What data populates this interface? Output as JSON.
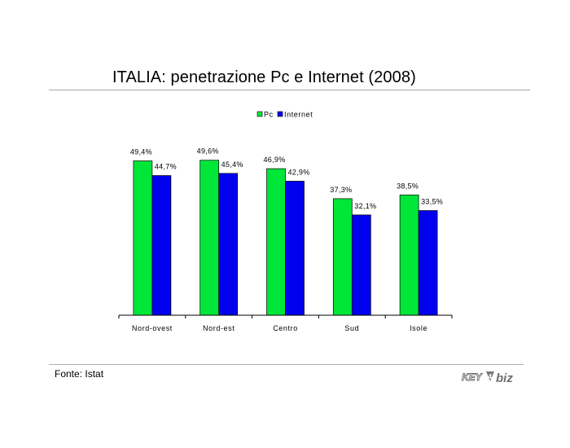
{
  "title": "ITALIA: penetrazione Pc e Internet (2008)",
  "source": "Fonte: Istat",
  "logo": {
    "text": "KEY4biz",
    "name": "key4biz-logo"
  },
  "colors": {
    "pc": "#00e639",
    "internet": "#0000ee",
    "axis": "#000000"
  },
  "chart_data": {
    "type": "bar",
    "title": "ITALIA: penetrazione Pc e Internet (2008)",
    "xlabel": "",
    "ylabel": "",
    "categories": [
      "Nord-ovest",
      "Nord-est",
      "Centro",
      "Sud",
      "Isole"
    ],
    "series": [
      {
        "name": "Pc",
        "color": "#00e639",
        "values": [
          49.4,
          49.6,
          46.9,
          37.3,
          38.5
        ],
        "labels": [
          "49,4%",
          "49,6%",
          "46,9%",
          "37,3%",
          "38,5%"
        ]
      },
      {
        "name": "Internet",
        "color": "#0000ee",
        "values": [
          44.7,
          45.4,
          42.9,
          32.1,
          33.5
        ],
        "labels": [
          "44,7%",
          "45,4%",
          "42,9%",
          "32,1%",
          "33,5%"
        ]
      }
    ],
    "ylim": [
      0,
      50
    ],
    "grid": false,
    "legend_position": "top"
  }
}
